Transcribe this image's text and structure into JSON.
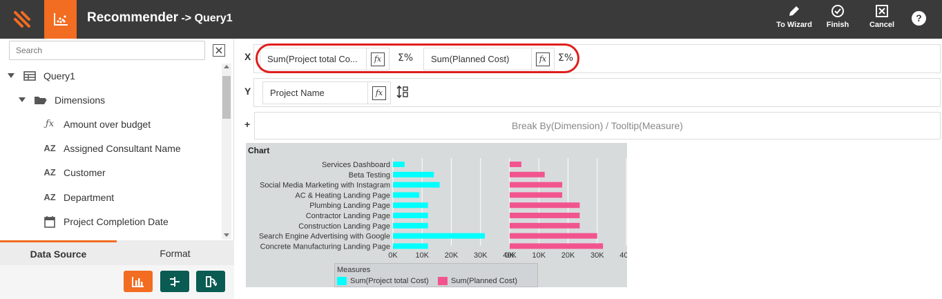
{
  "header": {
    "title": "Recommender",
    "subtitle": " -> Query1",
    "actions": [
      {
        "label": "To Wizard",
        "icon": "pencil-icon"
      },
      {
        "label": "Finish",
        "icon": "check-circle-icon"
      },
      {
        "label": "Cancel",
        "icon": "close-box-icon"
      }
    ],
    "help": "?"
  },
  "colors": {
    "header_bg": "#3a3a3a",
    "accent": "#f26c21",
    "teal": "#0a5b52",
    "highlight": "#e01d1d",
    "series1": "#00ffff",
    "series2": "#f2558e"
  },
  "sidebar": {
    "search_placeholder": "Search",
    "tree": [
      {
        "label": "Query1",
        "icon": "table-icon",
        "level": 0,
        "caret": true
      },
      {
        "label": "Dimensions",
        "icon": "folder-open-icon",
        "level": 1,
        "caret": true
      },
      {
        "label": "Amount over budget",
        "icon": "fx-icon",
        "level": 2
      },
      {
        "label": "Assigned Consultant Name",
        "icon": "az-icon",
        "level": 2
      },
      {
        "label": "Customer",
        "icon": "az-icon",
        "level": 2
      },
      {
        "label": "Department",
        "icon": "az-icon",
        "level": 2
      },
      {
        "label": "Project Completion Date",
        "icon": "calendar-icon",
        "level": 2
      }
    ],
    "tabs": [
      {
        "label": "Data Source",
        "active": true
      },
      {
        "label": "Format",
        "active": false
      }
    ],
    "buttons": [
      {
        "icon": "bar-chart-icon",
        "color": "#f26c21"
      },
      {
        "icon": "tree-structure-icon",
        "color": "#0a5b52"
      },
      {
        "icon": "export-icon",
        "color": "#0a5b52"
      }
    ]
  },
  "shelves": {
    "x_label": "X",
    "y_label": "Y",
    "plus_label": "+",
    "x_pills": [
      "Sum(Project total Co...",
      "Sum(Planned Cost)"
    ],
    "y_pills": [
      "Project Name"
    ],
    "break_by": "Break By(Dimension) / Tooltip(Measure)",
    "sigma": "Σ%",
    "fx": "fx",
    "sort": "↕"
  },
  "chart_data": {
    "type": "bar",
    "title": "Chart",
    "orientation": "horizontal",
    "categories": [
      "Services Dashboard",
      "Beta Testing",
      "Social Media Marketing with Instagram",
      "AC & Heating Landing Page",
      "Plumbing Landing Page",
      "Contractor Landing Page",
      "Construction Landing Page",
      "Search Engine Advertising with Google",
      "Concrete Manufacturing Landing Page"
    ],
    "series": [
      {
        "name": "Sum(Project total  Cost)",
        "values": [
          4000,
          14000,
          16000,
          9000,
          12000,
          12000,
          12000,
          31500,
          12000
        ]
      },
      {
        "name": "Sum(Planned Cost)",
        "values": [
          4000,
          12000,
          18000,
          18000,
          24000,
          24000,
          24000,
          30000,
          32000
        ]
      }
    ],
    "xlim": [
      0,
      40000
    ],
    "ticks": [
      "0K",
      "10K",
      "20K",
      "30K",
      "40K"
    ],
    "legend_title": "Measures",
    "legend_position": "bottom",
    "grid": true
  }
}
